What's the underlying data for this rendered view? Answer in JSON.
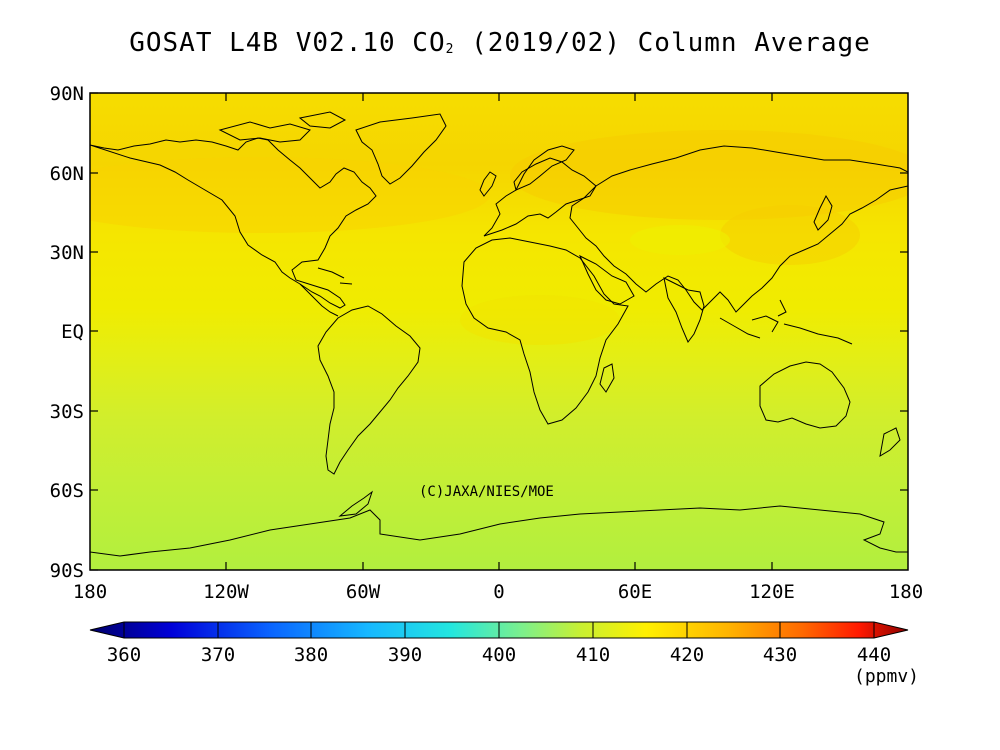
{
  "title": {
    "prefix": "GOSAT L4B V02.10 CO",
    "subscript": "2",
    "suffix": " (2019/02) Column Average"
  },
  "credit": "(C)JAXA/NIES/MOE",
  "latitude_labels": [
    "90N",
    "60N",
    "30N",
    "EQ",
    "30S",
    "60S",
    "90S"
  ],
  "longitude_labels": [
    "180",
    "120W",
    "60W",
    "0",
    "60E",
    "120E",
    "180"
  ],
  "colorbar": {
    "tick_labels": [
      "360",
      "370",
      "380",
      "390",
      "400",
      "410",
      "420",
      "430",
      "440"
    ],
    "unit": "(ppmv)",
    "range": [
      360,
      440
    ],
    "colors": [
      "#00006b",
      "#0000d8",
      "#0a64ff",
      "#17b8ff",
      "#22e6e0",
      "#7ef08a",
      "#c8f032",
      "#fff000",
      "#ffb400",
      "#ff6a00",
      "#ff1a00",
      "#8b0000"
    ]
  },
  "map_fill": {
    "north_high_lat": "#f8d800",
    "north_mid_lat": "#f5e600",
    "tropics": "#e6ee12",
    "southern_mid": "#c7ee34",
    "antarctic": "#b4ef3c"
  }
}
